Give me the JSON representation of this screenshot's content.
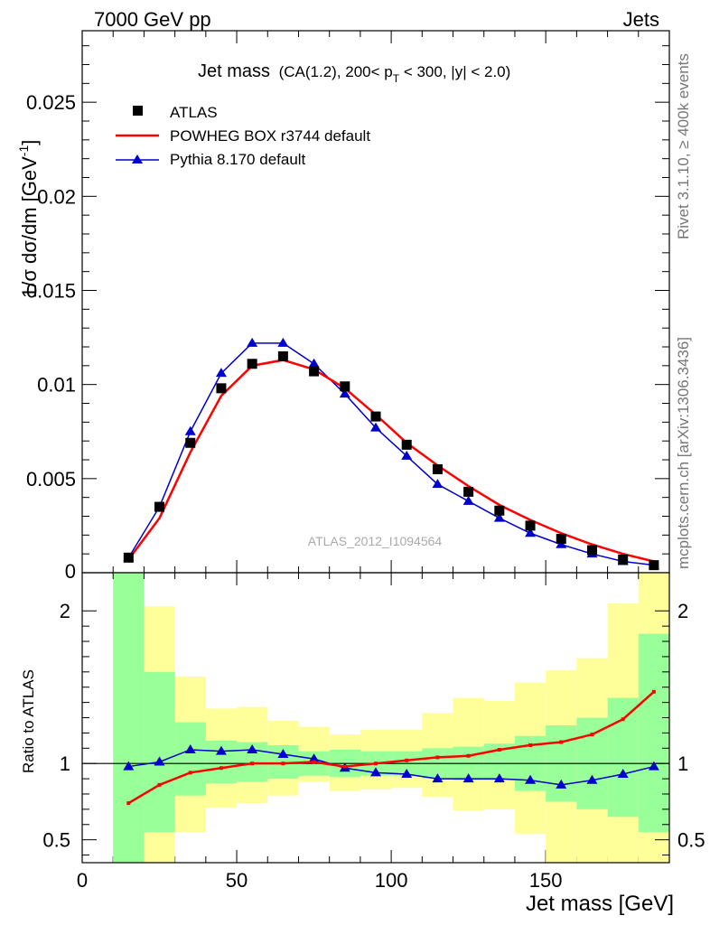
{
  "header": {
    "left": "7000 GeV pp",
    "right": "Jets"
  },
  "side_labels": {
    "rivet": "Rivet 3.1.10, ≥ 400k events",
    "mcplots": "mcplots.cern.ch [arXiv:1306.3436]"
  },
  "title": {
    "main": "Jet mass",
    "cuts_prefix": "(CA(1.2), 200< p",
    "cuts_sub": "T",
    "cuts_suffix": " < 300, |y| < 2.0)"
  },
  "watermark": "ATLAS_2012_I1094564",
  "ylabel_main": "1/σ dσ/dm [GeV",
  "ylabel_sup": "-1",
  "ylabel_close": "]",
  "ylabel_ratio": "Ratio to ATLAS",
  "xlabel": "Jet mass [GeV]",
  "legend": [
    {
      "label": "ATLAS",
      "color": "#000000",
      "marker": "square"
    },
    {
      "label": "POWHEG BOX r3744 default",
      "color": "#ff0000",
      "marker": "line"
    },
    {
      "label": "Pythia 8.170 default",
      "color": "#0000cc",
      "marker": "triangle"
    }
  ],
  "chart_data": [
    {
      "type": "scatter",
      "panel": "main",
      "xlim": [
        0,
        190
      ],
      "ylim": [
        0,
        0.0288
      ],
      "yticks": [
        0.005,
        0.01,
        0.015,
        0.02,
        0.025
      ],
      "ytick_labels": [
        "0.005",
        "0.01",
        "0.015",
        "0.02",
        "0.025"
      ],
      "x": [
        15,
        25,
        35,
        45,
        55,
        65,
        75,
        85,
        95,
        105,
        115,
        125,
        135,
        145,
        155,
        165,
        175,
        185
      ],
      "series": [
        {
          "name": "ATLAS",
          "color": "#000000",
          "values": [
            0.0008,
            0.0035,
            0.0069,
            0.0098,
            0.0111,
            0.0115,
            0.0107,
            0.0099,
            0.0083,
            0.0068,
            0.0055,
            0.0043,
            0.0033,
            0.0025,
            0.0018,
            0.0012,
            0.0007,
            0.0004
          ]
        },
        {
          "name": "POWHEG BOX r3744 default",
          "color": "#ff0000",
          "values": [
            0.0007,
            0.0029,
            0.0064,
            0.0094,
            0.011,
            0.0113,
            0.0108,
            0.0098,
            0.0084,
            0.0069,
            0.0057,
            0.0046,
            0.0036,
            0.0028,
            0.0021,
            0.0015,
            0.001,
            0.0006
          ]
        },
        {
          "name": "Pythia 8.170 default",
          "color": "#0000cc",
          "values": [
            0.0008,
            0.0035,
            0.0075,
            0.0106,
            0.0122,
            0.0122,
            0.0111,
            0.0095,
            0.0077,
            0.0062,
            0.0047,
            0.0038,
            0.0029,
            0.0021,
            0.0015,
            0.001,
            0.0006,
            0.0004
          ]
        }
      ]
    },
    {
      "type": "line",
      "panel": "ratio",
      "xlim": [
        0,
        190
      ],
      "ylim": [
        0.35,
        2.25
      ],
      "yticks": [
        0.5,
        1,
        2
      ],
      "ytick_labels": [
        "0.5",
        "1",
        "2"
      ],
      "xticks": [
        0,
        50,
        100,
        150
      ],
      "xtick_labels": [
        "0",
        "50",
        "100",
        "150"
      ],
      "bands": {
        "edges": [
          10,
          20,
          30,
          40,
          50,
          60,
          70,
          80,
          90,
          100,
          110,
          120,
          130,
          140,
          150,
          160,
          170,
          180,
          190
        ],
        "inner": {
          "color": "#99ff99",
          "lo": [
            0.35,
            0.55,
            0.79,
            0.87,
            0.88,
            0.9,
            0.92,
            0.91,
            0.92,
            0.92,
            0.9,
            0.89,
            0.89,
            0.82,
            0.75,
            0.7,
            0.65,
            0.55
          ],
          "hi": [
            2.25,
            1.6,
            1.27,
            1.15,
            1.14,
            1.12,
            1.08,
            1.09,
            1.08,
            1.08,
            1.1,
            1.11,
            1.13,
            1.18,
            1.25,
            1.3,
            1.43,
            1.85
          ]
        },
        "outer": {
          "color": "#ffff99",
          "lo": [
            0.35,
            0.35,
            0.55,
            0.71,
            0.74,
            0.79,
            0.88,
            0.82,
            0.83,
            0.84,
            0.78,
            0.69,
            0.7,
            0.54,
            0.35,
            0.35,
            0.35,
            0.35
          ],
          "hi": [
            2.25,
            2.03,
            1.57,
            1.36,
            1.37,
            1.28,
            1.24,
            1.19,
            1.22,
            1.22,
            1.33,
            1.43,
            1.41,
            1.53,
            1.61,
            1.69,
            2.05,
            2.25
          ]
        }
      },
      "x": [
        15,
        25,
        35,
        45,
        55,
        65,
        75,
        85,
        95,
        105,
        115,
        125,
        135,
        145,
        155,
        165,
        175,
        185
      ],
      "series": [
        {
          "name": "POWHEG BOX r3744 default",
          "color": "#ff0000",
          "values": [
            0.74,
            0.86,
            0.94,
            0.97,
            1.0,
            1.0,
            1.01,
            0.98,
            1.0,
            1.02,
            1.04,
            1.05,
            1.09,
            1.12,
            1.14,
            1.19,
            1.29,
            1.47
          ]
        },
        {
          "name": "Pythia 8.170 default",
          "color": "#0000cc",
          "values": [
            0.98,
            1.01,
            1.09,
            1.08,
            1.09,
            1.06,
            1.03,
            0.97,
            0.94,
            0.93,
            0.9,
            0.9,
            0.9,
            0.89,
            0.86,
            0.89,
            0.93,
            0.98
          ]
        }
      ],
      "reference_line": 1
    }
  ]
}
